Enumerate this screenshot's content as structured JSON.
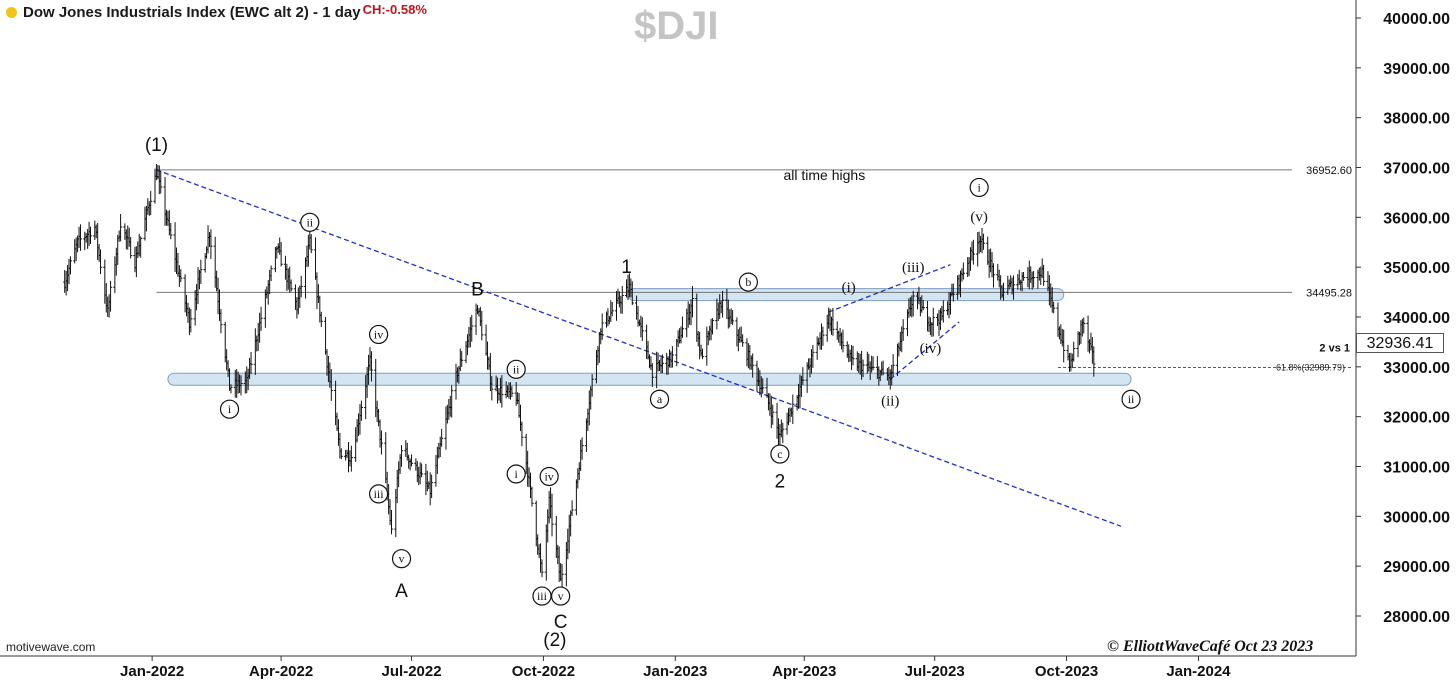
{
  "header": {
    "title": "Dow Jones Industrials Index (EWC alt 2) - 1 day",
    "change": "CH:-0.58%",
    "symbol": "$DJI"
  },
  "footer": {
    "brand": "motivewave.com",
    "copyright": "© ElliottWaveCafé Oct 23 2023"
  },
  "last_price": "32936.41",
  "colors": {
    "bar": "#111111",
    "trendline": "#1f2fc8",
    "zone_fill": "#d3e4f3",
    "zone_stroke": "#7f9fbe",
    "change_text": "#c0141c",
    "watermark": "#c4c4c4"
  },
  "chart_data": {
    "type": "ohlc",
    "title": "Dow Jones Industrials Index (EWC alt 2) - 1 day",
    "ylim": [
      27500,
      40500
    ],
    "y_ticks": [
      "28000.00",
      "29000.00",
      "30000.00",
      "31000.00",
      "32000.00",
      "33000.00",
      "34000.00",
      "35000.00",
      "36000.00",
      "37000.00",
      "38000.00",
      "39000.00",
      "40000.00"
    ],
    "x_ticks": [
      "Jan-2022",
      "Apr-2022",
      "Jul-2022",
      "Oct-2022",
      "Jan-2023",
      "Apr-2023",
      "Jul-2023",
      "Oct-2023",
      "Jan-2024"
    ],
    "grid": false,
    "price_path": [
      [
        "2021-11-01",
        34700
      ],
      [
        "2021-11-10",
        35500
      ],
      [
        "2021-11-22",
        35800
      ],
      [
        "2021-12-01",
        34100
      ],
      [
        "2021-12-10",
        35900
      ],
      [
        "2021-12-20",
        35100
      ],
      [
        "2022-01-04",
        36900
      ],
      [
        "2022-01-27",
        33900
      ],
      [
        "2022-02-10",
        35700
      ],
      [
        "2022-02-24",
        32600
      ],
      [
        "2022-03-08",
        32700
      ],
      [
        "2022-03-29",
        35400
      ],
      [
        "2022-04-12",
        34200
      ],
      [
        "2022-04-21",
        35500
      ],
      [
        "2022-05-12",
        31300
      ],
      [
        "2022-05-20",
        31200
      ],
      [
        "2022-06-02",
        33100
      ],
      [
        "2022-06-10",
        31400
      ],
      [
        "2022-06-17",
        29700
      ],
      [
        "2022-06-24",
        31400
      ],
      [
        "2022-07-14",
        30500
      ],
      [
        "2022-08-01",
        32800
      ],
      [
        "2022-08-16",
        34200
      ],
      [
        "2022-08-26",
        32600
      ],
      [
        "2022-09-12",
        32400
      ],
      [
        "2022-09-20",
        30900
      ],
      [
        "2022-09-30",
        28800
      ],
      [
        "2022-10-05",
        30300
      ],
      [
        "2022-10-13",
        28700
      ],
      [
        "2022-11-10",
        33800
      ],
      [
        "2022-11-30",
        34600
      ],
      [
        "2022-12-16",
        32900
      ],
      [
        "2022-12-30",
        33200
      ],
      [
        "2023-01-13",
        34300
      ],
      [
        "2023-01-19",
        33200
      ],
      [
        "2023-02-02",
        34300
      ],
      [
        "2023-02-21",
        33200
      ],
      [
        "2023-03-08",
        32200
      ],
      [
        "2023-03-15",
        31600
      ],
      [
        "2023-04-18",
        34000
      ],
      [
        "2023-05-04",
        33100
      ],
      [
        "2023-05-31",
        32800
      ],
      [
        "2023-06-16",
        34400
      ],
      [
        "2023-06-28",
        33900
      ],
      [
        "2023-07-06",
        34000
      ],
      [
        "2023-08-01",
        35600
      ],
      [
        "2023-08-17",
        34500
      ],
      [
        "2023-08-31",
        34800
      ],
      [
        "2023-09-14",
        34900
      ],
      [
        "2023-10-03",
        33000
      ],
      [
        "2023-10-12",
        33900
      ],
      [
        "2023-10-20",
        33100
      ]
    ],
    "horizontal_lines": [
      {
        "value": 36952.6,
        "label": "36952.60",
        "note": "all time highs"
      },
      {
        "value": 34495.28,
        "label": "34495.28"
      },
      {
        "value": 32989.79,
        "label": "61.8%(32989.79)",
        "note": "2 vs 1",
        "dashed": true
      }
    ],
    "zones": [
      {
        "from": "2022-11-29",
        "to": "2023-09-29",
        "center": 34450
      },
      {
        "from": "2022-01-12",
        "to": "2023-11-15",
        "center": 32750
      }
    ],
    "trendlines": [
      {
        "from": [
          "2022-01-04",
          36952.6
        ],
        "to": [
          "2023-11-08",
          29800
        ]
      },
      {
        "from": [
          "2023-05-31",
          32750
        ],
        "to": [
          "2023-07-18",
          33900
        ]
      },
      {
        "from": [
          "2023-04-18",
          34100
        ],
        "to": [
          "2023-07-12",
          35050
        ]
      }
    ],
    "wave_labels": [
      {
        "text": "(1)",
        "date": "2022-01-04",
        "price": 37450,
        "style": "plain"
      },
      {
        "text": "i",
        "date": "2022-02-24",
        "price": 32150,
        "style": "circle"
      },
      {
        "text": "ii",
        "date": "2022-04-21",
        "price": 35900,
        "style": "circle"
      },
      {
        "text": "iii",
        "date": "2022-06-08",
        "price": 30450,
        "style": "circle"
      },
      {
        "text": "iv",
        "date": "2022-06-08",
        "price": 33650,
        "style": "circle"
      },
      {
        "text": "v",
        "date": "2022-06-24",
        "price": 29150,
        "style": "circle"
      },
      {
        "text": "A",
        "date": "2022-06-24",
        "price": 28500,
        "style": "plain"
      },
      {
        "text": "B",
        "date": "2022-08-16",
        "price": 34550,
        "style": "plain"
      },
      {
        "text": "ii",
        "date": "2022-09-12",
        "price": 32950,
        "style": "circle"
      },
      {
        "text": "i",
        "date": "2022-09-12",
        "price": 30850,
        "style": "circle"
      },
      {
        "text": "iv",
        "date": "2022-10-05",
        "price": 30800,
        "style": "circle"
      },
      {
        "text": "iii",
        "date": "2022-09-30",
        "price": 28400,
        "style": "circle"
      },
      {
        "text": "v",
        "date": "2022-10-13",
        "price": 28400,
        "style": "circle"
      },
      {
        "text": "C",
        "date": "2022-10-13",
        "price": 27880,
        "style": "plain"
      },
      {
        "text": "(2)",
        "date": "2022-10-09",
        "price": 27520,
        "style": "plain"
      },
      {
        "text": "1",
        "date": "2022-11-28",
        "price": 35000,
        "style": "plain"
      },
      {
        "text": "b",
        "date": "2023-02-21",
        "price": 34700,
        "style": "circle"
      },
      {
        "text": "a",
        "date": "2022-12-21",
        "price": 32350,
        "style": "circle"
      },
      {
        "text": "c",
        "date": "2023-03-15",
        "price": 31250,
        "style": "circle"
      },
      {
        "text": "2",
        "date": "2023-03-15",
        "price": 30700,
        "style": "plain"
      },
      {
        "text": "(i)",
        "date": "2023-05-02",
        "price": 34600,
        "style": "paren"
      },
      {
        "text": "(iii)",
        "date": "2023-06-16",
        "price": 35000,
        "style": "paren"
      },
      {
        "text": "(iv)",
        "date": "2023-06-28",
        "price": 33380,
        "style": "paren"
      },
      {
        "text": "(ii)",
        "date": "2023-05-31",
        "price": 32320,
        "style": "paren"
      },
      {
        "text": "i",
        "date": "2023-08-01",
        "price": 36600,
        "style": "circle"
      },
      {
        "text": "(v)",
        "date": "2023-08-01",
        "price": 36020,
        "style": "paren"
      },
      {
        "text": "ii",
        "date": "2023-11-15",
        "price": 32350,
        "style": "circle"
      }
    ]
  }
}
